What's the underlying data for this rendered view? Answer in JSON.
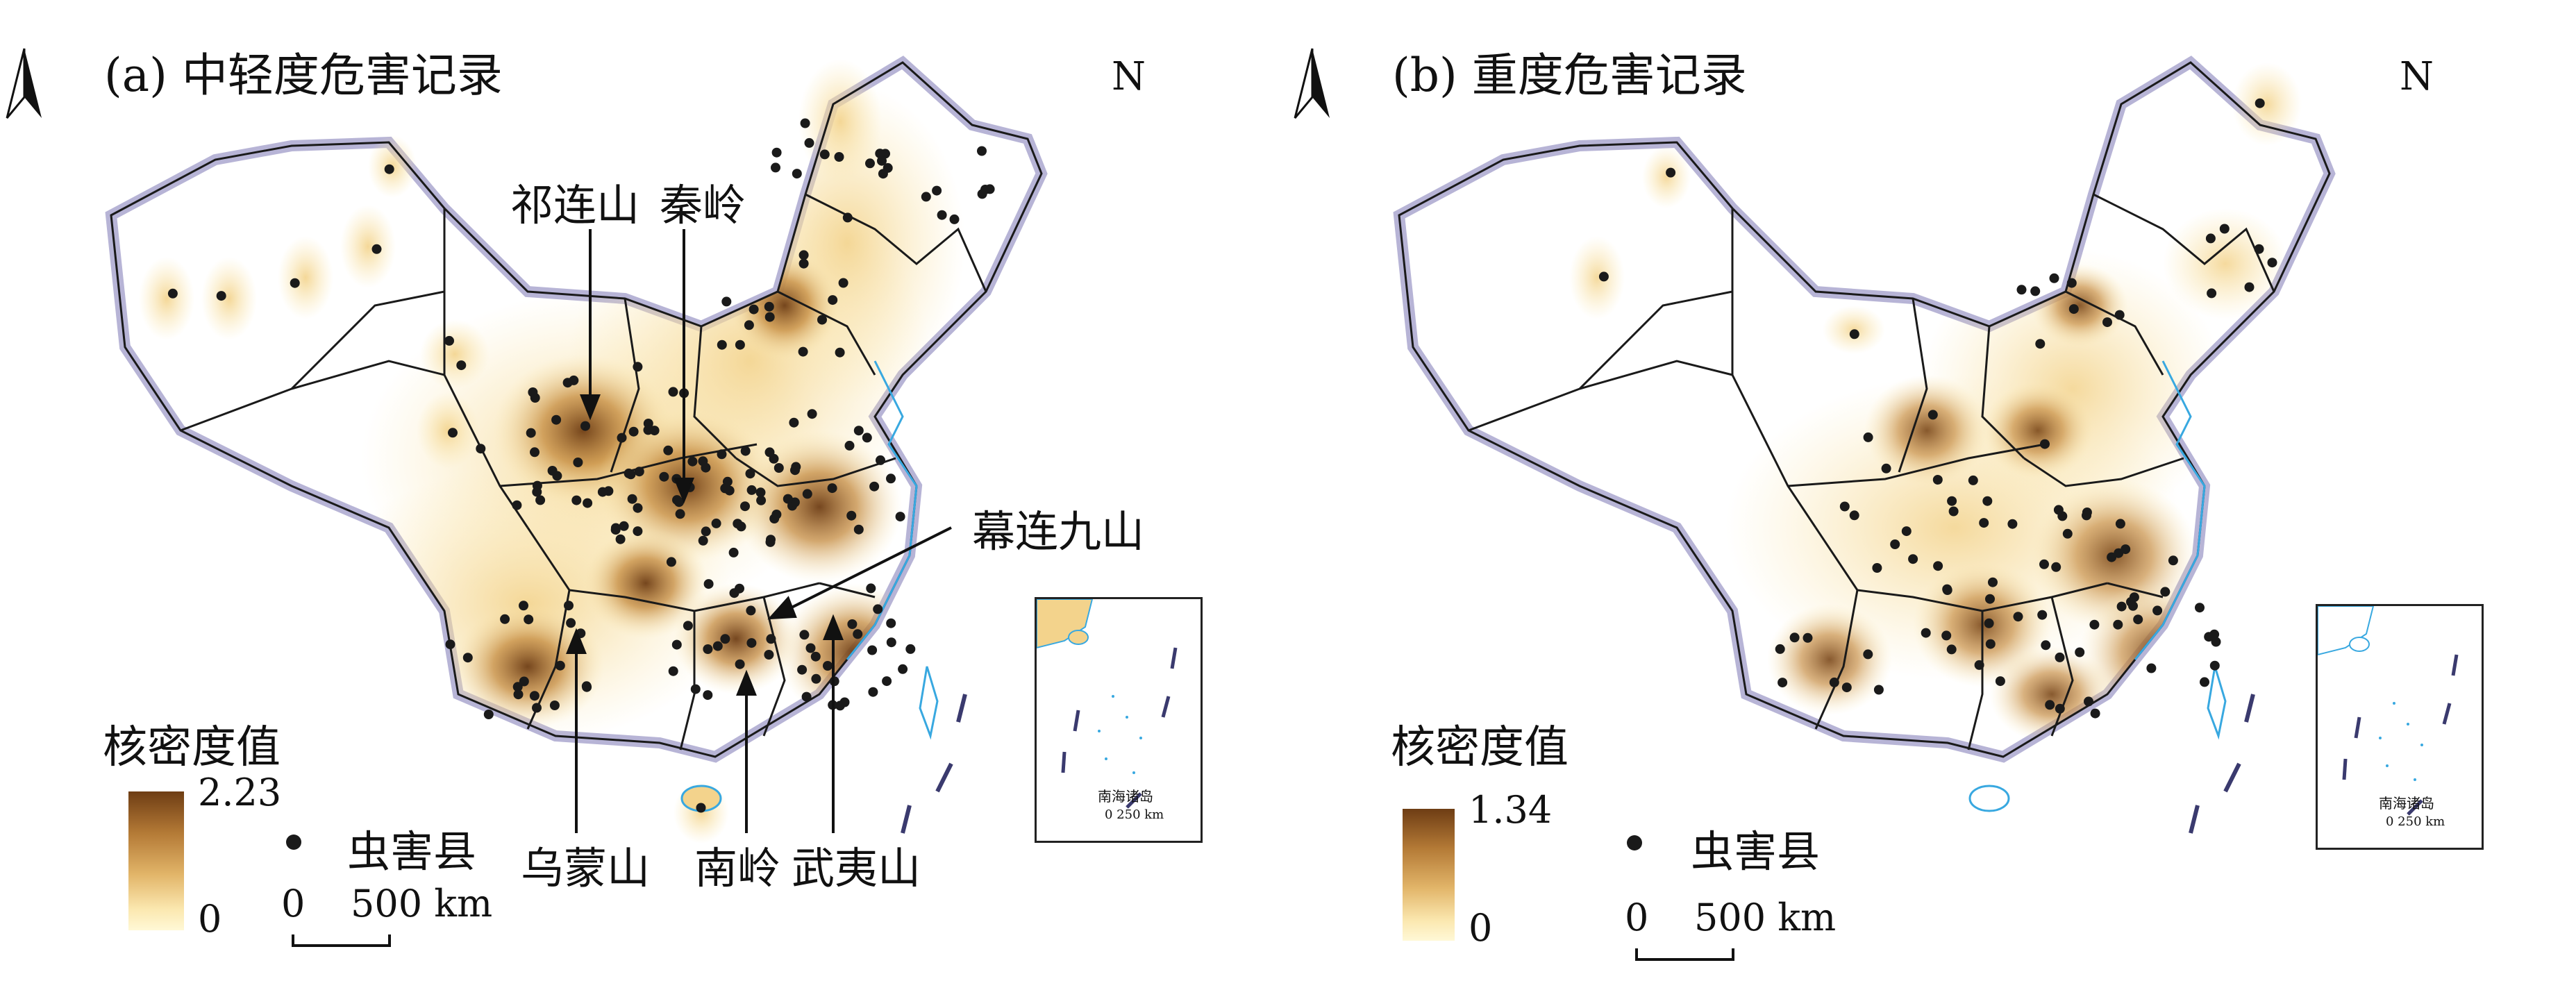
{
  "panels": [
    {
      "title": "(a) 中轻度危害记录",
      "north": "N",
      "legend": {
        "title": "核密度值",
        "max": "2.23",
        "min": "0",
        "point_label": "虫害县"
      },
      "scale": {
        "zero": "0",
        "distance": "500 km"
      },
      "inset": {
        "label": "南海诸岛",
        "scale": "0 250 km"
      },
      "annotations": [
        "祁连山",
        "秦岭",
        "幕连九山",
        "乌蒙山",
        "南岭",
        "武夷山"
      ]
    },
    {
      "title": "(b) 重度危害记录",
      "north": "N",
      "legend": {
        "title": "核密度值",
        "max": "1.34",
        "min": "0",
        "point_label": "虫害县"
      },
      "scale": {
        "zero": "0",
        "distance": "500 km"
      },
      "inset": {
        "label": "南海诸岛",
        "scale": "0 250 km"
      }
    }
  ],
  "colors": {
    "density_high": "#6e3d14",
    "density_mid": "#c48a3e",
    "density_low": "#fff8d6",
    "border": "#1a1a1a",
    "coast": "#38a8e0",
    "point": "#1a1a1a"
  }
}
